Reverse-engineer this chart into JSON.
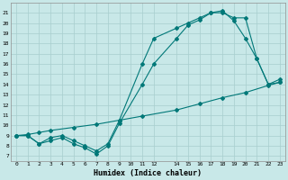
{
  "xlabel": "Humidex (Indice chaleur)",
  "bg_color": "#c8e8e8",
  "grid_color": "#a8cece",
  "line_color": "#007878",
  "xlim": [
    -0.5,
    23.5
  ],
  "ylim": [
    6.5,
    22.0
  ],
  "yticks": [
    7,
    8,
    9,
    10,
    11,
    12,
    13,
    14,
    15,
    16,
    17,
    18,
    19,
    20,
    21
  ],
  "xticks": [
    0,
    1,
    2,
    3,
    4,
    5,
    6,
    7,
    8,
    9,
    10,
    11,
    12,
    14,
    15,
    16,
    17,
    18,
    19,
    20,
    21,
    22,
    23
  ],
  "xtick_labels": [
    "0",
    "1",
    "2",
    "3",
    "4",
    "5",
    "6",
    "7",
    "8",
    "9",
    "10",
    "11",
    "12",
    "14",
    "15",
    "16",
    "17",
    "18",
    "19",
    "20",
    "21",
    "22",
    "23"
  ],
  "line1_x": [
    0,
    1,
    2,
    3,
    4,
    5,
    6,
    7,
    8,
    9,
    11,
    12,
    14,
    15,
    16,
    17,
    18,
    19,
    20,
    21,
    22,
    23
  ],
  "line1_y": [
    9,
    9,
    8.2,
    8.8,
    9,
    8.5,
    8.0,
    7.5,
    8.2,
    10.5,
    16.0,
    18.5,
    19.5,
    20.0,
    20.5,
    21.0,
    21.0,
    20.5,
    20.5,
    16.5,
    14.0,
    14.5
  ],
  "line2_x": [
    0,
    1,
    2,
    3,
    4,
    5,
    6,
    7,
    8,
    9,
    11,
    12,
    14,
    15,
    16,
    17,
    18,
    19,
    20,
    21,
    22,
    23
  ],
  "line2_y": [
    9,
    9,
    8.2,
    8.5,
    8.8,
    8.2,
    7.8,
    7.2,
    8.0,
    10.2,
    14.0,
    16.0,
    18.5,
    19.8,
    20.3,
    21.0,
    21.2,
    20.2,
    18.5,
    16.5,
    14.0,
    14.2
  ],
  "line3_x": [
    0,
    1,
    2,
    3,
    5,
    7,
    9,
    11,
    14,
    16,
    18,
    20,
    22,
    23
  ],
  "line3_y": [
    9,
    9.1,
    9.3,
    9.5,
    9.8,
    10.1,
    10.5,
    10.9,
    11.5,
    12.1,
    12.7,
    13.2,
    13.9,
    14.2
  ]
}
